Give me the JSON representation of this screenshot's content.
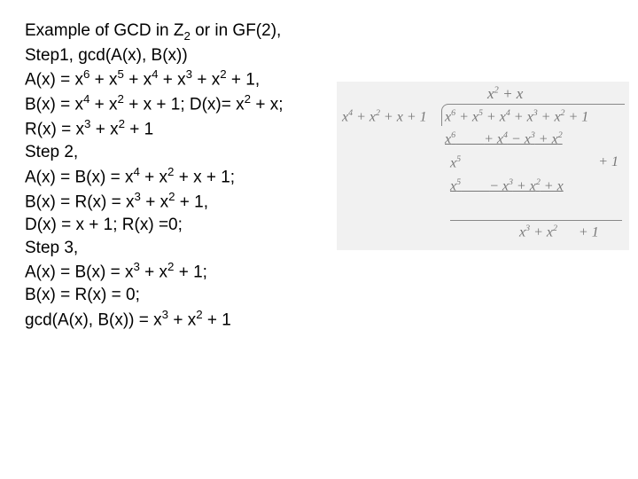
{
  "text": {
    "l1a": "Example of GCD in Z",
    "l1sub": "2",
    "l1b": " or in GF(2),",
    "l2": "Step1, gcd(A(x), B(x))",
    "l3a": "A(x) = x",
    "l3e1": "6",
    "l3b": " + x",
    "l3e2": "5",
    "l3c": " + x",
    "l3e3": "4",
    "l3d": " + x",
    "l3e4": "3",
    "l3e": " + x",
    "l3e5": "2",
    "l3f": " + 1,",
    "l4a": "B(x) = x",
    "l4e1": "4",
    "l4b": " + x",
    "l4e2": "2",
    "l4c": " + x + 1; D(x)= x",
    "l4e3": "2",
    "l4d": " + x;",
    "l5a": "R(x) = x",
    "l5e1": "3",
    "l5b": " + x",
    "l5e2": "2",
    "l5c": " + 1",
    "l6": "Step 2,",
    "l7a": "A(x) = B(x) = x",
    "l7e1": "4",
    "l7b": " + x",
    "l7e2": "2",
    "l7c": " + x + 1;",
    "l8a": "B(x) = R(x) = x",
    "l8e1": "3",
    "l8b": " + x",
    "l8e2": "2",
    "l8c": " + 1,",
    "l9": "D(x) = x + 1; R(x) =0;",
    "l10": "Step 3,",
    "l11a": "A(x) = B(x) = x",
    "l11e1": "3",
    "l11b": " + x",
    "l11e2": "2",
    "l11c": " + 1;",
    "l12": "B(x) = R(x) = 0;",
    "l13a": "gcd(A(x), B(x)) = x",
    "l13e1": "3",
    "l13b": " + x",
    "l13e2": "2",
    "l13c": " + 1"
  },
  "figure": {
    "background_color": "#f1f1f1",
    "text_color": "#777777",
    "quotient_l": "x",
    "quotient_e": "2",
    "quotient_r": " + x",
    "divisor_a": "x",
    "divisor_e1": "4",
    "divisor_b": " + x",
    "divisor_e2": "2",
    "divisor_c": " + x + 1",
    "dividend_a": "x",
    "dividend_e1": "6",
    "dividend_b": " + x",
    "dividend_e2": "5",
    "dividend_c": " + x",
    "dividend_e3": "4",
    "dividend_d": " + x",
    "dividend_e4": "3",
    "dividend_e": " + x",
    "dividend_e5": "2",
    "dividend_f": " + 1",
    "sub1_a": "x",
    "sub1_e1": "6",
    "sub1_sp": "        ",
    "sub1_b": "+ x",
    "sub1_e2": "4",
    "sub1_c": " − x",
    "sub1_e3": "3",
    "sub1_d": " + x",
    "sub1_e4": "2",
    "r1_a": "x",
    "r1_e1": "5",
    "plus1": "+ 1",
    "sub2_a": "x",
    "sub2_e1": "5",
    "sub2_sp": "        ",
    "sub2_b": "− x",
    "sub2_e2": "3",
    "sub2_c": " + x",
    "sub2_e3": "2",
    "sub2_d": " + x",
    "res_a": "x",
    "res_e1": "3",
    "res_b": " + x",
    "res_e2": "2",
    "res_sp": "      ",
    "res_c": "+ 1"
  }
}
